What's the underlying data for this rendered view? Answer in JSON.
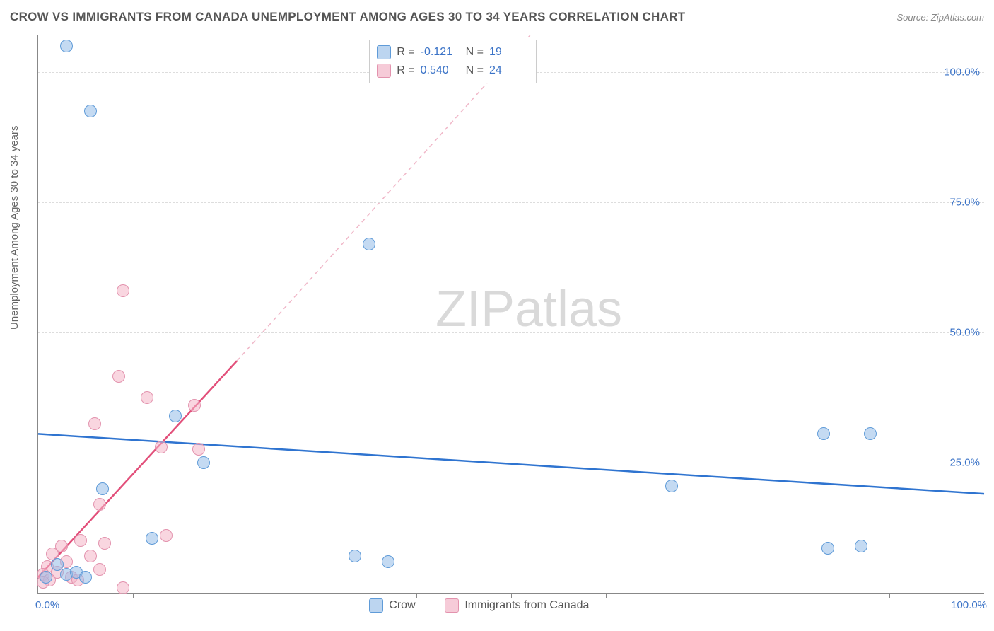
{
  "title": "CROW VS IMMIGRANTS FROM CANADA UNEMPLOYMENT AMONG AGES 30 TO 34 YEARS CORRELATION CHART",
  "source": "Source: ZipAtlas.com",
  "y_axis_label": "Unemployment Among Ages 30 to 34 years",
  "watermark_zip": "ZIP",
  "watermark_atlas": "atlas",
  "chart": {
    "type": "scatter",
    "xlim": [
      0,
      100
    ],
    "ylim": [
      0,
      107
    ],
    "x_ticks_minor": [
      10,
      20,
      30,
      40,
      50,
      60,
      70,
      80,
      90
    ],
    "x_tick_labels": [
      {
        "v": 0,
        "t": "0.0%",
        "align": "left"
      },
      {
        "v": 100,
        "t": "100.0%",
        "align": "right"
      }
    ],
    "y_ticks": [
      {
        "v": 25,
        "t": "25.0%"
      },
      {
        "v": 50,
        "t": "50.0%"
      },
      {
        "v": 75,
        "t": "75.0%"
      },
      {
        "v": 100,
        "t": "100.0%"
      }
    ],
    "grid_color": "#dddddd",
    "axis_color": "#888888",
    "background_color": "#ffffff",
    "series_blue": {
      "name": "Crow",
      "color_fill": "#bcd5f0",
      "color_stroke": "#5f9bd8",
      "R": "-0.121",
      "N": "19",
      "points": [
        [
          3.0,
          105.0
        ],
        [
          5.5,
          92.5
        ],
        [
          35.0,
          67.0
        ],
        [
          14.5,
          34.0
        ],
        [
          17.5,
          25.0
        ],
        [
          6.8,
          20.0
        ],
        [
          12.0,
          10.5
        ],
        [
          33.5,
          7.0
        ],
        [
          37.0,
          6.0
        ],
        [
          67.0,
          20.5
        ],
        [
          83.0,
          30.5
        ],
        [
          88.0,
          30.5
        ],
        [
          87.0,
          9.0
        ],
        [
          83.5,
          8.5
        ],
        [
          0.8,
          3.0
        ],
        [
          3.0,
          3.5
        ],
        [
          2.0,
          5.5
        ],
        [
          4.0,
          4.0
        ],
        [
          5.0,
          3.0
        ]
      ],
      "trend": {
        "x1": 0,
        "y1": 30.5,
        "x2": 100,
        "y2": 19.0,
        "color": "#2f74d0",
        "width": 2.5,
        "dash": ""
      }
    },
    "series_pink": {
      "name": "Immigrants from Canada",
      "color_fill": "#f6cbd8",
      "color_stroke": "#e393ae",
      "R": "0.540",
      "N": "24",
      "points": [
        [
          9.0,
          58.0
        ],
        [
          8.5,
          41.5
        ],
        [
          11.5,
          37.5
        ],
        [
          16.5,
          36.0
        ],
        [
          6.0,
          32.5
        ],
        [
          13.0,
          28.0
        ],
        [
          17.0,
          27.5
        ],
        [
          6.5,
          17.0
        ],
        [
          13.5,
          11.0
        ],
        [
          7.0,
          9.5
        ],
        [
          4.5,
          10.0
        ],
        [
          2.5,
          9.0
        ],
        [
          1.5,
          7.5
        ],
        [
          5.5,
          7.0
        ],
        [
          3.0,
          6.0
        ],
        [
          1.0,
          5.0
        ],
        [
          2.0,
          4.0
        ],
        [
          0.5,
          3.5
        ],
        [
          3.5,
          3.0
        ],
        [
          1.2,
          2.5
        ],
        [
          4.2,
          2.5
        ],
        [
          6.5,
          4.5
        ],
        [
          9.0,
          1.0
        ],
        [
          0.5,
          2.0
        ]
      ],
      "trend_solid": {
        "x1": 0,
        "y1": 3.0,
        "x2": 21,
        "y2": 44.5,
        "color": "#e24f7a",
        "width": 2.5,
        "dash": ""
      },
      "trend_dash": {
        "x1": 21,
        "y1": 44.5,
        "x2": 52,
        "y2": 107.0,
        "color": "#f0b7c8",
        "width": 1.5,
        "dash": "6 5"
      }
    }
  },
  "legend_top": {
    "R_label": "R  =",
    "N_label": "N  ="
  },
  "bottom_legend": {
    "blue": "Crow",
    "pink": "Immigrants from Canada"
  }
}
